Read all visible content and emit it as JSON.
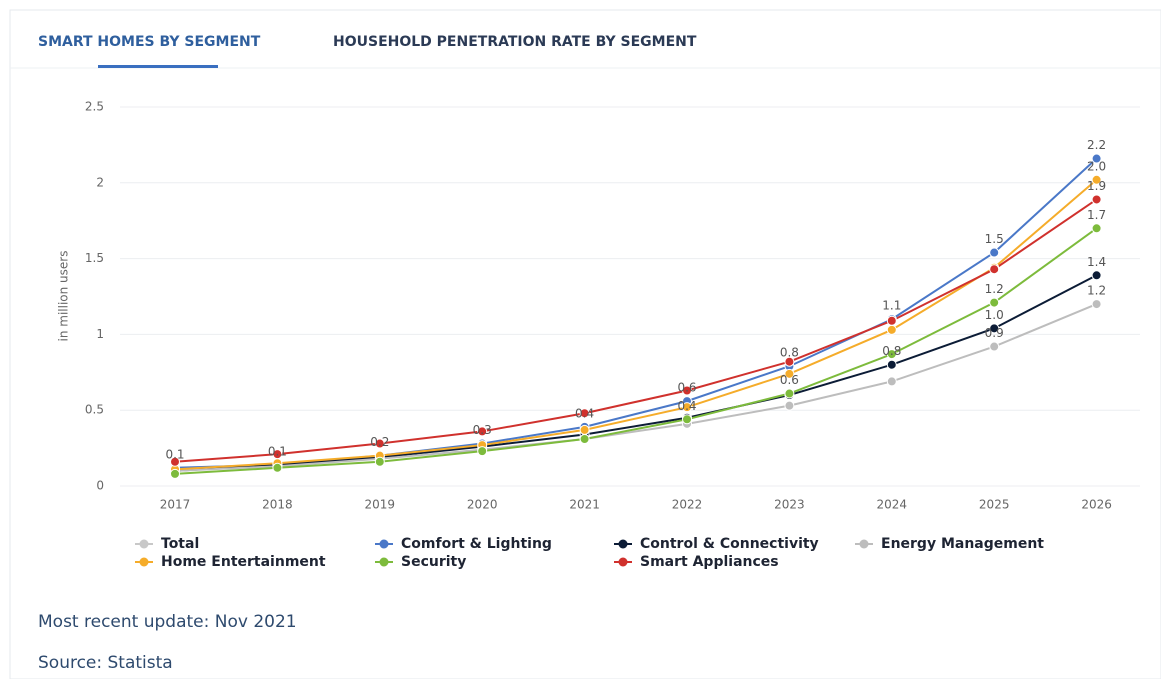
{
  "tabs": [
    "SMART HOMES BY SEGMENT",
    "HOUSEHOLD PENETRATION RATE BY SEGMENT"
  ],
  "chart_data": {
    "type": "line",
    "y_label": "in million users",
    "categories": [
      "2017",
      "2018",
      "2019",
      "2020",
      "2021",
      "2022",
      "2023",
      "2024",
      "2025",
      "2026"
    ],
    "ylim": [
      0,
      2.5
    ],
    "yticks": [
      0,
      0.5,
      1,
      1.5,
      2,
      2.5
    ],
    "grid": true,
    "series": [
      {
        "name": "Total",
        "color": "#c8c8c8",
        "hidden": true
      },
      {
        "name": "Comfort & Lighting",
        "color": "#4a78c8",
        "values": [
          0.12,
          0.14,
          0.2,
          0.28,
          0.39,
          0.56,
          0.79,
          1.1,
          1.54,
          2.16
        ],
        "value_labels": [
          "0.1",
          "0.1",
          "0.2",
          "0.3",
          "0.4",
          "0.6",
          "0.8",
          "1.1",
          "1.5",
          "2.2"
        ]
      },
      {
        "name": "Control & Connectivity",
        "color": "#0c1c36",
        "values": [
          0.1,
          0.14,
          0.19,
          0.26,
          0.34,
          0.45,
          0.6,
          0.8,
          1.04,
          1.39
        ],
        "value_labels": [
          null,
          null,
          null,
          null,
          null,
          null,
          null,
          "0.8",
          "1.0",
          "1.4"
        ]
      },
      {
        "name": "Energy Management",
        "color": "#bdbdbd",
        "values": [
          0.1,
          0.13,
          0.18,
          0.24,
          0.31,
          0.41,
          0.53,
          0.69,
          0.92,
          1.2
        ],
        "value_labels": [
          null,
          null,
          null,
          null,
          null,
          null,
          null,
          null,
          "0.9",
          "1.2"
        ]
      },
      {
        "name": "Home Entertainment",
        "color": "#f5ac2a",
        "values": [
          0.11,
          0.15,
          0.2,
          0.27,
          0.37,
          0.52,
          0.74,
          1.03,
          1.44,
          2.02
        ],
        "value_labels": [
          null,
          null,
          null,
          null,
          null,
          null,
          null,
          null,
          null,
          "2.0"
        ]
      },
      {
        "name": "Security",
        "color": "#7dbb3c",
        "values": [
          0.08,
          0.12,
          0.16,
          0.23,
          0.31,
          0.44,
          0.61,
          0.87,
          1.21,
          1.7
        ],
        "value_labels": [
          null,
          null,
          null,
          null,
          null,
          "0.4",
          "0.6",
          null,
          "1.2",
          "1.7"
        ]
      },
      {
        "name": "Smart Appliances",
        "color": "#d0312d",
        "values": [
          0.16,
          0.21,
          0.28,
          0.36,
          0.48,
          0.63,
          0.82,
          1.09,
          1.43,
          1.89
        ],
        "value_labels": [
          null,
          null,
          null,
          null,
          null,
          null,
          null,
          null,
          null,
          "1.9"
        ]
      }
    ]
  },
  "footer": {
    "update": "Most recent update: Nov 2021",
    "source": "Source: Statista"
  }
}
